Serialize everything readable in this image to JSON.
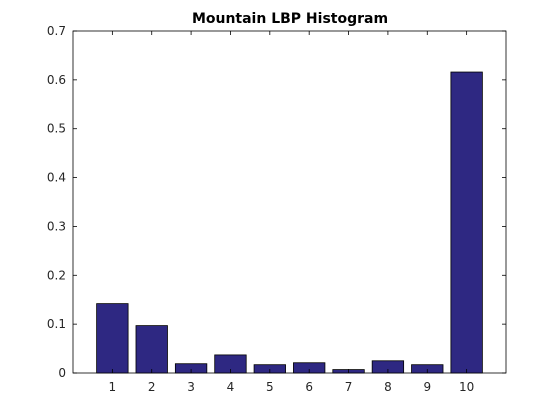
{
  "chart_data": {
    "type": "bar",
    "title": "Mountain LBP Histogram",
    "xlabel": "",
    "ylabel": "",
    "categories": [
      "1",
      "2",
      "3",
      "4",
      "5",
      "6",
      "7",
      "8",
      "9",
      "10"
    ],
    "values": [
      0.142,
      0.097,
      0.019,
      0.037,
      0.017,
      0.021,
      0.007,
      0.025,
      0.017,
      0.616
    ],
    "xlim": [
      0,
      11
    ],
    "ylim": [
      0,
      0.7
    ],
    "yticks": [
      "0",
      "0.1",
      "0.2",
      "0.3",
      "0.4",
      "0.5",
      "0.6",
      "0.7"
    ],
    "grid": false,
    "colors": {
      "bar": "#2e2882",
      "bar_edge": "#000000",
      "axes": "#000000"
    }
  }
}
